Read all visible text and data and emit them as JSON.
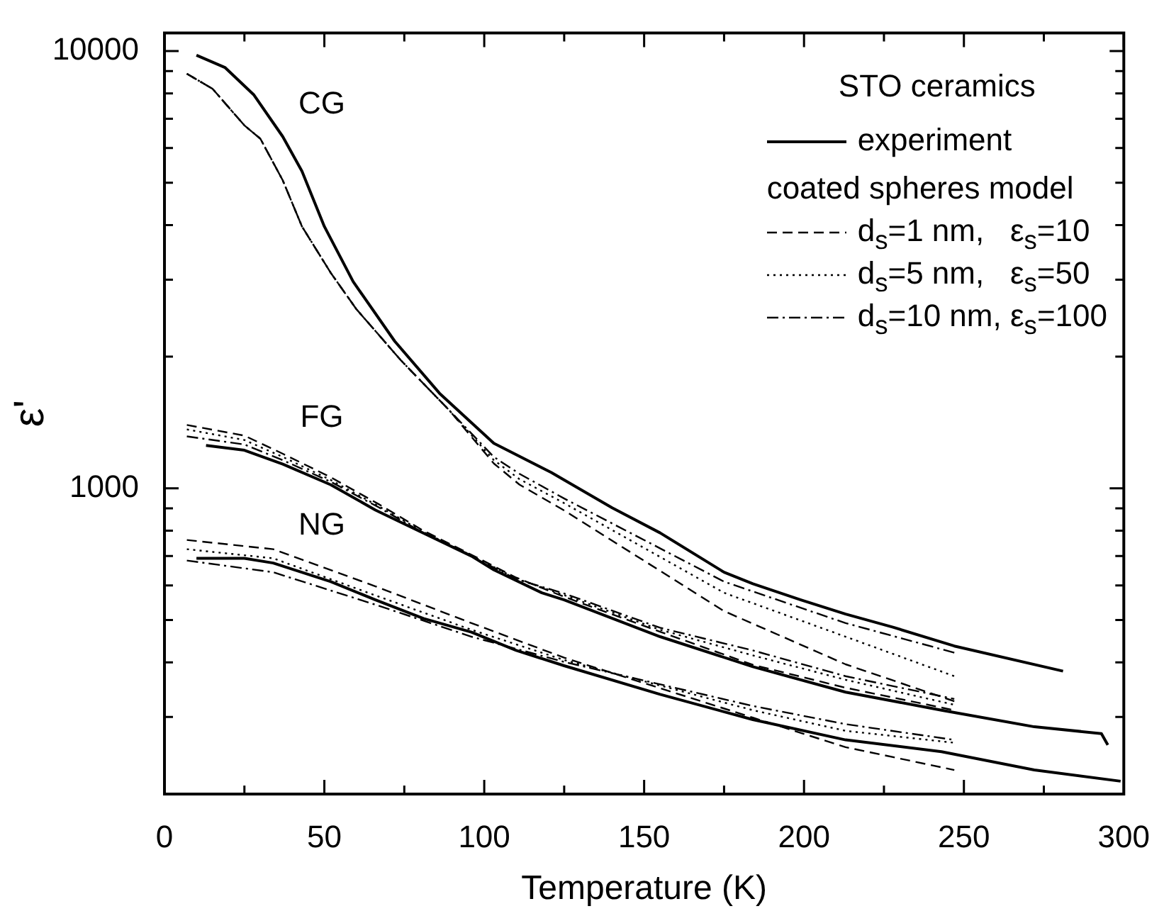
{
  "chart_data": {
    "type": "line",
    "xlabel": "Temperature (K)",
    "ylabel": "ε'",
    "legend_title": "STO ceramics",
    "annotations": [
      "coated spheres model",
      "CG",
      "FG",
      "NG"
    ],
    "log": "y",
    "legend": "top right",
    "grid": false,
    "xlim": [
      0,
      300
    ],
    "ylim": [
      200,
      11000
    ],
    "xticks": [
      0,
      {
        "value": 25,
        "label": null
      },
      50,
      {
        "value": 75,
        "label": null
      },
      100,
      {
        "value": 125,
        "label": null
      },
      150,
      {
        "value": 175,
        "label": null
      },
      200,
      {
        "value": 225,
        "label": null
      },
      250,
      {
        "value": 275,
        "label": null
      },
      300
    ],
    "yticks": [
      {
        "value": 200,
        "label": null
      },
      {
        "value": 300,
        "label": null
      },
      {
        "value": 400,
        "label": null
      },
      {
        "value": 500,
        "label": null
      },
      {
        "value": 600,
        "label": null
      },
      {
        "value": 700,
        "label": null
      },
      {
        "value": 800,
        "label": null
      },
      {
        "value": 900,
        "label": null
      },
      1000,
      {
        "value": 2000,
        "label": null
      },
      {
        "value": 3000,
        "label": null
      },
      {
        "value": 4000,
        "label": null
      },
      {
        "value": 5000,
        "label": null
      },
      {
        "value": 6000,
        "label": null
      },
      {
        "value": 7000,
        "label": null
      },
      {
        "value": 8000,
        "label": null
      },
      {
        "value": 9000,
        "label": null
      },
      10000
    ],
    "series": [
      {
        "name": "experiment",
        "color": "#000000",
        "line_style": "solid",
        "x": [
          10,
          19,
          28,
          37,
          43,
          50,
          59,
          72,
          86,
          103,
          121,
          125,
          140,
          155,
          175,
          184,
          199,
          213,
          228,
          247,
          281
        ],
        "values": [
          9780,
          9160,
          7930,
          6370,
          5310,
          3970,
          2970,
          2170,
          1650,
          1268,
          1087,
          1045,
          903,
          791,
          643,
          605,
          556,
          516,
          481,
          436,
          382
        ]
      },
      {
        "name": "d$_{s}$=1 nm,   ε$_{s}$=10",
        "color": "#000000",
        "line_style": "dashed",
        "x": [
          7,
          15,
          25,
          30,
          37,
          43,
          52,
          60,
          74,
          89,
          103,
          111,
          125,
          175,
          213,
          247
        ],
        "values": [
          8870,
          8200,
          6760,
          6300,
          5060,
          3970,
          3110,
          2570,
          1960,
          1510,
          1140,
          1020,
          890,
          524,
          396,
          326
        ]
      },
      {
        "name": "d$_{s}$=5 nm,   ε$_{s}$=50",
        "color": "#000000",
        "line_style": "dotted",
        "x": [
          7,
          15,
          25,
          30,
          37,
          43,
          52,
          60,
          74,
          89,
          103,
          111,
          125,
          175,
          213,
          247
        ],
        "values": [
          8870,
          8200,
          6760,
          6300,
          5060,
          3970,
          3110,
          2570,
          1960,
          1510,
          1160,
          1050,
          925,
          577,
          458,
          372
        ]
      },
      {
        "name": "d$_{s}$=10 nm, ε$_{s}$=100",
        "color": "#000000",
        "line_style": "dashdot",
        "x": [
          7,
          15,
          25,
          30,
          37,
          43,
          52,
          60,
          74,
          89,
          103,
          111,
          125,
          175,
          213,
          247
        ],
        "values": [
          8870,
          8200,
          6760,
          6300,
          5060,
          3970,
          3110,
          2570,
          1960,
          1510,
          1180,
          1080,
          948,
          612,
          492,
          421
        ]
      },
      {
        "color": "#000000",
        "line_style": "solid",
        "x": [
          13,
          25,
          37,
          52,
          66,
          81,
          96,
          103,
          118,
          125,
          155,
          184,
          213,
          243,
          272,
          293,
          295
        ],
        "values": [
          1254,
          1222,
          1136,
          1019,
          892,
          790,
          700,
          651,
          577,
          556,
          458,
          391,
          342,
          311,
          285,
          275,
          259
        ]
      },
      {
        "color": "#000000",
        "line_style": "dashed",
        "x": [
          7,
          25,
          37,
          52,
          67,
          81,
          96,
          110,
          125,
          155,
          184,
          213,
          247
        ],
        "values": [
          1396,
          1320,
          1200,
          1060,
          920,
          800,
          705,
          625,
          565,
          470,
          395,
          350,
          311
        ]
      },
      {
        "color": "#000000",
        "line_style": "dotted",
        "x": [
          7,
          25,
          37,
          52,
          67,
          81,
          96,
          110,
          125,
          155,
          184,
          213,
          247
        ],
        "values": [
          1364,
          1290,
          1180,
          1045,
          910,
          795,
          702,
          622,
          570,
          475,
          415,
          365,
          320
        ]
      },
      {
        "color": "#000000",
        "line_style": "dashdot",
        "x": [
          7,
          25,
          37,
          52,
          67,
          81,
          96,
          110,
          125,
          155,
          184,
          213,
          247
        ],
        "values": [
          1315,
          1260,
          1160,
          1035,
          905,
          790,
          700,
          620,
          575,
          480,
          426,
          372,
          330
        ]
      },
      {
        "color": "#000000",
        "line_style": "solid",
        "x": [
          10,
          25,
          34,
          52,
          66,
          81,
          96,
          110,
          125,
          155,
          184,
          213,
          243,
          272,
          299
        ],
        "values": [
          692,
          692,
          675,
          612,
          556,
          504,
          469,
          426,
          393,
          338,
          296,
          266,
          250,
          227,
          214
        ]
      },
      {
        "color": "#000000",
        "line_style": "dashed",
        "x": [
          7,
          34,
          66,
          96,
          125,
          184,
          213,
          247
        ],
        "values": [
          762,
          726,
          597,
          492,
          410,
          299,
          256,
          227
        ]
      },
      {
        "color": "#000000",
        "line_style": "dotted",
        "x": [
          7,
          34,
          66,
          96,
          125,
          184,
          213,
          247
        ],
        "values": [
          726,
          692,
          569,
          475,
          405,
          311,
          279,
          262
        ]
      },
      {
        "color": "#000000",
        "line_style": "dashdot",
        "x": [
          7,
          34,
          66,
          96,
          125,
          184,
          213,
          247
        ],
        "values": [
          684,
          643,
          542,
          458,
          401,
          318,
          289,
          266
        ]
      }
    ]
  }
}
